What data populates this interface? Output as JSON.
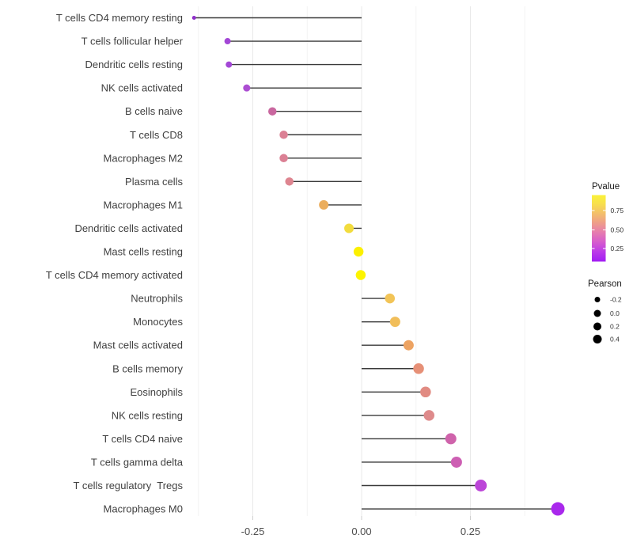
{
  "chart_data": {
    "type": "lollipop",
    "orientation": "horizontal",
    "title": "",
    "xlabel": "",
    "ylabel": "",
    "xlim": [
      -0.405,
      0.475
    ],
    "x_ticks": [
      {
        "label": "-0.25",
        "value": -0.25
      },
      {
        "label": "0.00",
        "value": 0.0
      },
      {
        "label": "0.25",
        "value": 0.25
      }
    ],
    "minor_grid_values": [
      -0.375,
      -0.125,
      0.125,
      0.375
    ],
    "grid": "vertical major and minor gridlines, very light grey, no panel border",
    "categories": [
      "T cells CD4 memory resting",
      "T cells follicular helper",
      "Dendritic cells resting",
      "NK cells activated",
      "B cells naive",
      "T cells CD8",
      "Macrophages M2",
      "Plasma cells",
      "Macrophages M1",
      "Dendritic cells activated",
      "Mast cells resting",
      "T cells CD4 memory activated",
      "Neutrophils",
      "Monocytes",
      "Mast cells activated",
      "B cells memory",
      "Eosinophils",
      "NK cells resting",
      "T cells CD4 naive",
      "T cells gamma delta",
      "T cells regulatory  Tregs",
      "Macrophages M0"
    ],
    "points": [
      {
        "label": "T cells CD4 memory resting",
        "pearson": -0.385,
        "dot_color": "#8F2FC9",
        "dot_diameter": 5
      },
      {
        "label": "T cells follicular helper",
        "pearson": -0.308,
        "dot_color": "#A347D6",
        "dot_diameter": 8
      },
      {
        "label": "Dendritic cells resting",
        "pearson": -0.305,
        "dot_color": "#A347D6",
        "dot_diameter": 8
      },
      {
        "label": "NK cells activated",
        "pearson": -0.264,
        "dot_color": "#AC4ED2",
        "dot_diameter": 9
      },
      {
        "label": "B cells naive",
        "pearson": -0.205,
        "dot_color": "#C9679F",
        "dot_diameter": 10.5
      },
      {
        "label": "T cells CD8",
        "pearson": -0.179,
        "dot_color": "#DB8094",
        "dot_diameter": 10.5
      },
      {
        "label": "Macrophages M2",
        "pearson": -0.179,
        "dot_color": "#DB8094",
        "dot_diameter": 10.5
      },
      {
        "label": "Plasma cells",
        "pearson": -0.166,
        "dot_color": "#DE8590",
        "dot_diameter": 10.5
      },
      {
        "label": "Macrophages M1",
        "pearson": -0.087,
        "dot_color": "#EBAD5C",
        "dot_diameter": 12
      },
      {
        "label": "Dendritic cells activated",
        "pearson": -0.029,
        "dot_color": "#F2DC3E",
        "dot_diameter": 12
      },
      {
        "label": "Mast cells resting",
        "pearson": -0.007,
        "dot_color": "#FCF000",
        "dot_diameter": 12.5
      },
      {
        "label": "T cells CD4 memory activated",
        "pearson": -0.002,
        "dot_color": "#FDF400",
        "dot_diameter": 12.5
      },
      {
        "label": "Neutrophils",
        "pearson": 0.065,
        "dot_color": "#F2C457",
        "dot_diameter": 12.5
      },
      {
        "label": "Monocytes",
        "pearson": 0.077,
        "dot_color": "#F1BE5A",
        "dot_diameter": 13
      },
      {
        "label": "Mast cells activated",
        "pearson": 0.108,
        "dot_color": "#EDA362",
        "dot_diameter": 13
      },
      {
        "label": "B cells memory",
        "pearson": 0.131,
        "dot_color": "#E69077",
        "dot_diameter": 13.5
      },
      {
        "label": "Eosinophils",
        "pearson": 0.147,
        "dot_color": "#E18B82",
        "dot_diameter": 13.5
      },
      {
        "label": "NK cells resting",
        "pearson": 0.155,
        "dot_color": "#DE8A8B",
        "dot_diameter": 13.5
      },
      {
        "label": "T cells CD4 naive",
        "pearson": 0.205,
        "dot_color": "#CF63AB",
        "dot_diameter": 14
      },
      {
        "label": "T cells gamma delta",
        "pearson": 0.218,
        "dot_color": "#CD5FB3",
        "dot_diameter": 14
      },
      {
        "label": "T cells regulatory  Tregs",
        "pearson": 0.274,
        "dot_color": "#BC45D8",
        "dot_diameter": 15
      },
      {
        "label": "Macrophages M0",
        "pearson": 0.451,
        "dot_color": "#A928EC",
        "dot_diameter": 17
      }
    ],
    "legend_position": "right",
    "legends": {
      "pvalue": {
        "title": "Pvalue",
        "ticks": [
          "0.75",
          "0.50",
          "0.25"
        ],
        "gradient_top_to_bottom": [
          {
            "offset": 0,
            "color": "#FAF239"
          },
          {
            "offset": 0.12,
            "color": "#F8E14B"
          },
          {
            "offset": 0.25,
            "color": "#F4C565"
          },
          {
            "offset": 0.4,
            "color": "#EFA285"
          },
          {
            "offset": 0.55,
            "color": "#E77FAC"
          },
          {
            "offset": 0.7,
            "color": "#D75DCC"
          },
          {
            "offset": 0.85,
            "color": "#BC3BE8"
          },
          {
            "offset": 1,
            "color": "#A21DF3"
          }
        ]
      },
      "pearson": {
        "title": "Pearson",
        "entries": [
          {
            "label": "-0.2",
            "dot_diameter": 7
          },
          {
            "label": "0.0",
            "dot_diameter": 9
          },
          {
            "label": "0.2",
            "dot_diameter": 10
          },
          {
            "label": "0.4",
            "dot_diameter": 11
          }
        ],
        "dot_color": "#000000"
      }
    },
    "colors": {
      "stem": "#3a3a3a",
      "grid_major": "#e9e9e9",
      "grid_minor": "#f4f4f4",
      "axis_tick": "#cfcfcf",
      "category_label_text": "#404040",
      "axis_label_text": "#4d4d4d",
      "legend_title_text": "#1a1a1a",
      "legend_label_text": "#333333",
      "background": "#ffffff"
    }
  }
}
